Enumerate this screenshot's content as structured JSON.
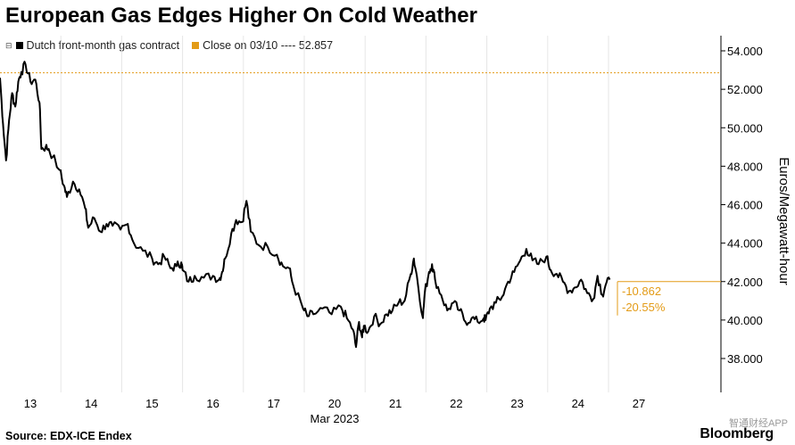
{
  "title": "European Gas Edges Higher On Cold Weather",
  "legend": {
    "series_label": "Dutch front-month gas contract",
    "close_label": "Close on 03/10 ---- 52.857",
    "series_color": "#000000",
    "close_color": "#e39b17"
  },
  "source": "Source: EDX-ICE Endex",
  "logo": "Bloomberg",
  "watermark": "智通财经APP",
  "chart_data": {
    "type": "line",
    "title": "European Gas Edges Higher On Cold Weather",
    "ylabel": "Euros/Megawatt-hour",
    "xlabel": "Mar 2023",
    "ylim": [
      36.3,
      55
    ],
    "yticks": [
      "38.000",
      "40.000",
      "42.000",
      "44.000",
      "46.000",
      "48.000",
      "50.000",
      "52.000",
      "54.000"
    ],
    "ytick_values": [
      38,
      40,
      42,
      44,
      46,
      48,
      50,
      52,
      54
    ],
    "xticks": [
      "13",
      "14",
      "15",
      "16",
      "17",
      "20",
      "21",
      "22",
      "23",
      "24",
      "27"
    ],
    "x_month_label": "Mar 2023",
    "reference_line": {
      "label": "Close on 03/10",
      "value": 52.857
    },
    "current_level": 42.0,
    "annotations": {
      "change": "-10.862",
      "change_pct": "-20.55%"
    },
    "grid": "vertical",
    "series": [
      {
        "name": "Dutch front-month gas contract",
        "points": [
          [
            0.0,
            52.6
          ],
          [
            0.05,
            50.2
          ],
          [
            0.1,
            48.3
          ],
          [
            0.15,
            50.4
          ],
          [
            0.2,
            51.8
          ],
          [
            0.25,
            51.1
          ],
          [
            0.3,
            52.4
          ],
          [
            0.35,
            52.9
          ],
          [
            0.42,
            53.3
          ],
          [
            0.5,
            52.4
          ],
          [
            0.58,
            52.5
          ],
          [
            0.65,
            51.3
          ],
          [
            0.68,
            48.9
          ],
          [
            0.75,
            49.0
          ],
          [
            0.8,
            48.9
          ],
          [
            0.98,
            47.8
          ],
          [
            1.05,
            47.0
          ],
          [
            1.1,
            46.4
          ],
          [
            1.2,
            47.2
          ],
          [
            1.3,
            46.8
          ],
          [
            1.4,
            45.8
          ],
          [
            1.45,
            44.8
          ],
          [
            1.55,
            45.3
          ],
          [
            1.65,
            44.6
          ],
          [
            1.75,
            45.0
          ],
          [
            1.85,
            44.9
          ],
          [
            1.98,
            44.7
          ],
          [
            2.1,
            45.0
          ],
          [
            2.2,
            44.0
          ],
          [
            2.35,
            43.6
          ],
          [
            2.5,
            43.2
          ],
          [
            2.6,
            42.9
          ],
          [
            2.7,
            43.3
          ],
          [
            2.8,
            42.7
          ],
          [
            2.9,
            42.8
          ],
          [
            2.98,
            43.0
          ],
          [
            3.0,
            42.6
          ],
          [
            3.1,
            42.0
          ],
          [
            3.2,
            42.3
          ],
          [
            3.35,
            42.2
          ],
          [
            3.5,
            42.3
          ],
          [
            3.6,
            42.1
          ],
          [
            3.65,
            42.5
          ],
          [
            3.7,
            43.2
          ],
          [
            3.8,
            44.5
          ],
          [
            3.88,
            45.2
          ],
          [
            3.98,
            45.1
          ],
          [
            4.05,
            46.2
          ],
          [
            4.12,
            44.6
          ],
          [
            4.25,
            43.9
          ],
          [
            4.4,
            43.8
          ],
          [
            4.55,
            43.4
          ],
          [
            4.65,
            42.8
          ],
          [
            4.75,
            42.7
          ],
          [
            4.82,
            41.8
          ],
          [
            4.98,
            40.6
          ],
          [
            5.05,
            40.2
          ],
          [
            5.15,
            40.3
          ],
          [
            5.3,
            40.6
          ],
          [
            5.45,
            40.3
          ],
          [
            5.6,
            40.7
          ],
          [
            5.7,
            40.1
          ],
          [
            5.8,
            39.5
          ],
          [
            5.85,
            38.6
          ],
          [
            5.9,
            39.9
          ],
          [
            5.95,
            39.1
          ],
          [
            5.98,
            39.7
          ],
          [
            6.05,
            39.4
          ],
          [
            6.15,
            40.2
          ],
          [
            6.25,
            39.8
          ],
          [
            6.35,
            40.3
          ],
          [
            6.45,
            40.5
          ],
          [
            6.55,
            40.9
          ],
          [
            6.65,
            41.0
          ],
          [
            6.75,
            42.4
          ],
          [
            6.8,
            43.2
          ],
          [
            6.85,
            42.3
          ],
          [
            6.95,
            40.1
          ],
          [
            6.98,
            41.4
          ],
          [
            7.05,
            42.5
          ],
          [
            7.1,
            42.9
          ],
          [
            7.15,
            42.1
          ],
          [
            7.25,
            41.3
          ],
          [
            7.35,
            40.5
          ],
          [
            7.45,
            40.9
          ],
          [
            7.55,
            40.5
          ],
          [
            7.65,
            39.9
          ],
          [
            7.75,
            40.1
          ],
          [
            7.85,
            39.9
          ],
          [
            7.95,
            40.1
          ],
          [
            7.98,
            40.0
          ],
          [
            8.05,
            40.6
          ],
          [
            8.15,
            40.9
          ],
          [
            8.25,
            41.2
          ],
          [
            8.35,
            42.0
          ],
          [
            8.45,
            42.5
          ],
          [
            8.55,
            43.1
          ],
          [
            8.65,
            43.7
          ],
          [
            8.75,
            43.1
          ],
          [
            8.85,
            42.9
          ],
          [
            8.98,
            43.3
          ],
          [
            9.05,
            42.6
          ],
          [
            9.15,
            42.4
          ],
          [
            9.25,
            42.0
          ],
          [
            9.35,
            41.5
          ],
          [
            9.45,
            41.7
          ],
          [
            9.55,
            42.1
          ],
          [
            9.65,
            41.4
          ],
          [
            9.75,
            41.1
          ],
          [
            9.82,
            42.3
          ],
          [
            9.9,
            41.3
          ],
          [
            9.95,
            41.8
          ],
          [
            10.02,
            42.1
          ]
        ]
      }
    ]
  }
}
